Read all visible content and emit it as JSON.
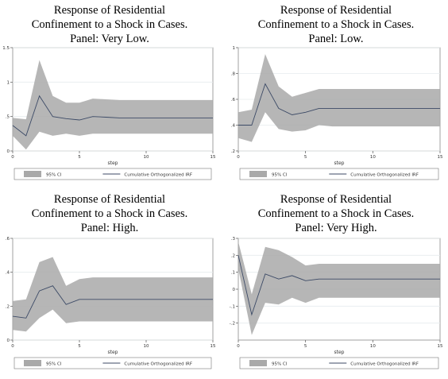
{
  "chart_data": [
    {
      "type": "line",
      "title_lines": [
        "Response of Residential",
        "Confinement to a Shock in Cases.",
        "Panel: Very Low."
      ],
      "xlabel": "step",
      "xlim": [
        0,
        15
      ],
      "xticks": [
        "0",
        "5",
        "10",
        "15"
      ],
      "ylim": [
        0,
        1.5
      ],
      "yticks": [
        {
          "v": 0,
          "label": "0"
        },
        {
          "v": 0.5,
          "label": ".5"
        },
        {
          "v": 1,
          "label": "1"
        },
        {
          "v": 1.5,
          "label": "1.5"
        }
      ],
      "grid": true,
      "legend": {
        "placement": "bottom",
        "ci_label": "95% CI",
        "line_label": "Cumulative Orthogonalized IRF"
      },
      "x": [
        0,
        1,
        2,
        3,
        4,
        5,
        6,
        7,
        8,
        9,
        10,
        11,
        12,
        13,
        14,
        15
      ],
      "series": [
        {
          "role": "irf",
          "values": [
            0.37,
            0.22,
            0.8,
            0.5,
            0.47,
            0.45,
            0.5,
            0.49,
            0.48,
            0.48,
            0.48,
            0.48,
            0.48,
            0.48,
            0.48,
            0.48
          ]
        },
        {
          "role": "ci_lower",
          "values": [
            0.22,
            0.02,
            0.28,
            0.22,
            0.25,
            0.22,
            0.25,
            0.25,
            0.25,
            0.25,
            0.25,
            0.25,
            0.25,
            0.25,
            0.25,
            0.25
          ]
        },
        {
          "role": "ci_upper",
          "values": [
            0.48,
            0.46,
            1.32,
            0.8,
            0.7,
            0.7,
            0.76,
            0.75,
            0.74,
            0.74,
            0.74,
            0.74,
            0.74,
            0.74,
            0.74,
            0.74
          ]
        }
      ]
    },
    {
      "type": "line",
      "title_lines": [
        "Response of Residential",
        "Confinement to a Shock in Cases.",
        "Panel: Low."
      ],
      "xlabel": "step",
      "xlim": [
        0,
        15
      ],
      "xticks": [
        "0",
        "5",
        "10",
        "15"
      ],
      "ylim": [
        0.2,
        1.0
      ],
      "yticks": [
        {
          "v": 0.2,
          "label": ".2"
        },
        {
          "v": 0.4,
          "label": ".4"
        },
        {
          "v": 0.6,
          "label": ".6"
        },
        {
          "v": 0.8,
          "label": ".8"
        },
        {
          "v": 1.0,
          "label": "1"
        }
      ],
      "grid": true,
      "legend": {
        "placement": "bottom",
        "ci_label": "95% CI",
        "line_label": "Cumulative Orthogonalized IRF"
      },
      "x": [
        0,
        1,
        2,
        3,
        4,
        5,
        6,
        7,
        8,
        9,
        10,
        11,
        12,
        13,
        14,
        15
      ],
      "series": [
        {
          "role": "irf",
          "values": [
            0.4,
            0.4,
            0.72,
            0.53,
            0.48,
            0.5,
            0.53,
            0.53,
            0.53,
            0.53,
            0.53,
            0.53,
            0.53,
            0.53,
            0.53,
            0.53
          ]
        },
        {
          "role": "ci_lower",
          "values": [
            0.3,
            0.27,
            0.5,
            0.37,
            0.35,
            0.36,
            0.4,
            0.39,
            0.39,
            0.39,
            0.39,
            0.39,
            0.39,
            0.39,
            0.39,
            0.39
          ]
        },
        {
          "role": "ci_upper",
          "values": [
            0.5,
            0.52,
            0.95,
            0.7,
            0.62,
            0.65,
            0.68,
            0.68,
            0.68,
            0.68,
            0.68,
            0.68,
            0.68,
            0.68,
            0.68,
            0.68
          ]
        }
      ]
    },
    {
      "type": "line",
      "title_lines": [
        "Response of Residential",
        "Confinement to a Shock in Cases.",
        "Panel: High."
      ],
      "xlabel": "step",
      "xlim": [
        0,
        15
      ],
      "xticks": [
        "0",
        "5",
        "10",
        "15"
      ],
      "ylim": [
        0,
        0.6
      ],
      "yticks": [
        {
          "v": 0,
          "label": "0"
        },
        {
          "v": 0.2,
          "label": ".2"
        },
        {
          "v": 0.4,
          "label": ".4"
        },
        {
          "v": 0.6,
          "label": ".6"
        }
      ],
      "grid": true,
      "legend": {
        "placement": "bottom",
        "ci_label": "95% CI",
        "line_label": "Cumulative Orthogonalized IRF"
      },
      "x": [
        0,
        1,
        2,
        3,
        4,
        5,
        6,
        7,
        8,
        9,
        10,
        11,
        12,
        13,
        14,
        15
      ],
      "series": [
        {
          "role": "irf",
          "values": [
            0.14,
            0.13,
            0.29,
            0.32,
            0.21,
            0.24,
            0.24,
            0.24,
            0.24,
            0.24,
            0.24,
            0.24,
            0.24,
            0.24,
            0.24,
            0.24
          ]
        },
        {
          "role": "ci_lower",
          "values": [
            0.06,
            0.05,
            0.13,
            0.18,
            0.1,
            0.11,
            0.11,
            0.11,
            0.11,
            0.11,
            0.11,
            0.11,
            0.11,
            0.11,
            0.11,
            0.11
          ]
        },
        {
          "role": "ci_upper",
          "values": [
            0.23,
            0.24,
            0.46,
            0.49,
            0.32,
            0.36,
            0.37,
            0.37,
            0.37,
            0.37,
            0.37,
            0.37,
            0.37,
            0.37,
            0.37,
            0.37
          ]
        }
      ]
    },
    {
      "type": "line",
      "title_lines": [
        "Response of Residential",
        "Confinement to a Shock in Cases.",
        "Panel: Very High."
      ],
      "xlabel": "step",
      "xlim": [
        0,
        15
      ],
      "xticks": [
        "0",
        "5",
        "10",
        "15"
      ],
      "ylim": [
        -0.3,
        0.3
      ],
      "yticks": [
        {
          "v": -0.2,
          "label": "-.2"
        },
        {
          "v": -0.1,
          "label": "-.1"
        },
        {
          "v": 0,
          "label": "0"
        },
        {
          "v": 0.1,
          "label": ".1"
        },
        {
          "v": 0.2,
          "label": ".2"
        },
        {
          "v": 0.3,
          "label": ".3"
        }
      ],
      "grid": true,
      "legend": {
        "placement": "bottom",
        "ci_label": "95% CI",
        "line_label": "Cumulative Orthogonalized IRF"
      },
      "x": [
        0,
        1,
        2,
        3,
        4,
        5,
        6,
        7,
        8,
        9,
        10,
        11,
        12,
        13,
        14,
        15
      ],
      "series": [
        {
          "role": "irf",
          "values": [
            0.2,
            -0.15,
            0.09,
            0.06,
            0.08,
            0.05,
            0.06,
            0.06,
            0.06,
            0.06,
            0.06,
            0.06,
            0.06,
            0.06,
            0.06,
            0.06
          ]
        },
        {
          "role": "ci_lower",
          "values": [
            0.12,
            -0.27,
            -0.08,
            -0.09,
            -0.05,
            -0.08,
            -0.05,
            -0.05,
            -0.05,
            -0.05,
            -0.05,
            -0.05,
            -0.05,
            -0.05,
            -0.05,
            -0.05
          ]
        },
        {
          "role": "ci_upper",
          "values": [
            0.28,
            -0.03,
            0.25,
            0.23,
            0.19,
            0.14,
            0.15,
            0.15,
            0.15,
            0.15,
            0.15,
            0.15,
            0.15,
            0.15,
            0.15,
            0.15
          ]
        }
      ]
    }
  ]
}
